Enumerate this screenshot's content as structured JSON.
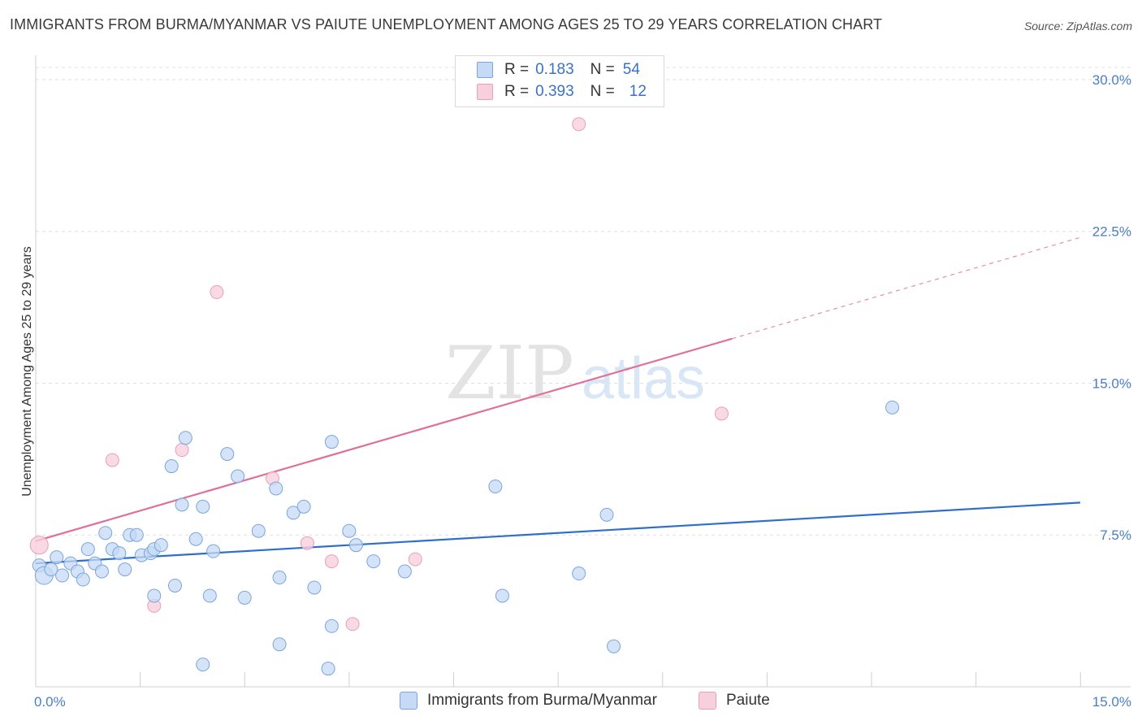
{
  "title": "IMMIGRANTS FROM BURMA/MYANMAR VS PAIUTE UNEMPLOYMENT AMONG AGES 25 TO 29 YEARS CORRELATION CHART",
  "source": "Source: ZipAtlas.com",
  "watermark": {
    "zip": "ZIP",
    "atlas": "atlas"
  },
  "legend": {
    "r_label": "R =",
    "n_label": "N =",
    "rows": [
      {
        "r": "0.183",
        "n": "54"
      },
      {
        "r": "0.393",
        "n": "12"
      }
    ]
  },
  "colors": {
    "blue_fill": "#c6daf5",
    "blue_stroke": "#7aa6dc",
    "blue_line": "#2f6fcc",
    "pink_fill": "#f8cfdc",
    "pink_stroke": "#e8a0b8",
    "pink_line": "#e0709a"
  },
  "chart_data": {
    "type": "scatter",
    "title": "IMMIGRANTS FROM BURMA/MYANMAR VS PAIUTE UNEMPLOYMENT AMONG AGES 25 TO 29 YEARS CORRELATION CHART",
    "xlabel": "",
    "ylabel": "Unemployment Among Ages 25 to 29 years",
    "xlim": [
      0,
      15
    ],
    "ylim": [
      0,
      30.8
    ],
    "x_tick_labels": [
      "0.0%",
      "15.0%"
    ],
    "y_ticks": [
      7.5,
      15.0,
      22.5,
      30.0
    ],
    "y_tick_labels": [
      "7.5%",
      "15.0%",
      "22.5%",
      "30.0%"
    ],
    "grid": true,
    "series": [
      {
        "name": "Immigrants from Burma/Myanmar",
        "r": 0.183,
        "n": 54,
        "trend": {
          "x0": 0,
          "y0": 6.1,
          "x1": 15,
          "y1": 9.1
        },
        "points": [
          [
            0.05,
            6.0
          ],
          [
            0.12,
            5.5
          ],
          [
            0.22,
            5.8
          ],
          [
            0.3,
            6.4
          ],
          [
            0.38,
            5.5
          ],
          [
            0.5,
            6.1
          ],
          [
            0.6,
            5.7
          ],
          [
            0.68,
            5.3
          ],
          [
            0.75,
            6.8
          ],
          [
            0.85,
            6.1
          ],
          [
            0.95,
            5.7
          ],
          [
            1.0,
            7.6
          ],
          [
            1.1,
            6.8
          ],
          [
            1.2,
            6.6
          ],
          [
            1.28,
            5.8
          ],
          [
            1.35,
            7.5
          ],
          [
            1.45,
            7.5
          ],
          [
            1.52,
            6.5
          ],
          [
            1.65,
            6.6
          ],
          [
            1.7,
            6.8
          ],
          [
            1.8,
            7.0
          ],
          [
            1.95,
            10.9
          ],
          [
            2.1,
            9.0
          ],
          [
            2.15,
            12.3
          ],
          [
            2.3,
            7.3
          ],
          [
            2.4,
            8.9
          ],
          [
            2.55,
            6.7
          ],
          [
            2.75,
            11.5
          ],
          [
            2.9,
            10.4
          ],
          [
            3.2,
            7.7
          ],
          [
            3.45,
            9.8
          ],
          [
            3.7,
            8.6
          ],
          [
            3.85,
            8.9
          ],
          [
            4.25,
            12.1
          ],
          [
            4.5,
            7.7
          ],
          [
            4.6,
            7.0
          ],
          [
            4.85,
            6.2
          ],
          [
            5.3,
            5.7
          ],
          [
            6.6,
            9.9
          ],
          [
            6.7,
            4.5
          ],
          [
            7.8,
            5.6
          ],
          [
            8.2,
            8.5
          ],
          [
            12.3,
            13.8
          ],
          [
            1.7,
            4.5
          ],
          [
            2.0,
            5.0
          ],
          [
            2.5,
            4.5
          ],
          [
            3.0,
            4.4
          ],
          [
            3.5,
            5.4
          ],
          [
            4.0,
            4.9
          ],
          [
            4.25,
            3.0
          ],
          [
            3.5,
            2.1
          ],
          [
            2.4,
            1.1
          ],
          [
            4.2,
            0.9
          ],
          [
            8.3,
            2.0
          ]
        ]
      },
      {
        "name": "Paiute",
        "r": 0.393,
        "n": 12,
        "trend": {
          "x0": 0,
          "y0": 7.2,
          "x1": 10.0,
          "y1": 17.2,
          "dashed_to_x": 15,
          "dashed_to_y": 22.2
        },
        "points": [
          [
            0.05,
            7.0
          ],
          [
            1.1,
            11.2
          ],
          [
            1.7,
            4.0
          ],
          [
            2.1,
            11.7
          ],
          [
            2.6,
            19.5
          ],
          [
            3.4,
            10.3
          ],
          [
            3.9,
            7.1
          ],
          [
            4.25,
            6.2
          ],
          [
            4.55,
            3.1
          ],
          [
            5.45,
            6.3
          ],
          [
            7.8,
            27.8
          ],
          [
            9.85,
            13.5
          ]
        ]
      }
    ]
  }
}
